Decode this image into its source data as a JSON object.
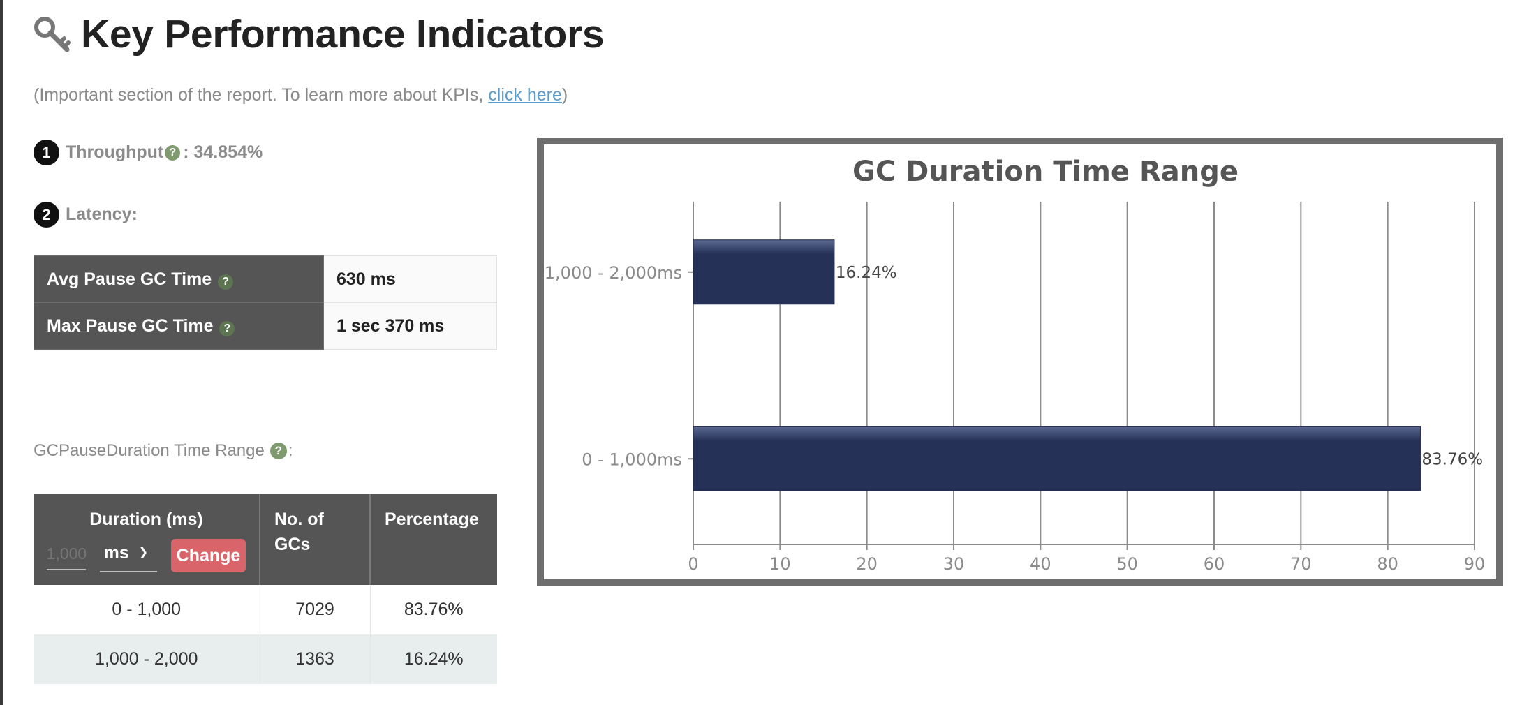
{
  "header": {
    "title": "Key Performance Indicators",
    "subtitle_prefix": "(Important section of the report. To learn more about KPIs, ",
    "subtitle_link": "click here",
    "subtitle_suffix": ")"
  },
  "kpi": {
    "throughput": {
      "badge": "1",
      "label": "Throughput",
      "help": "?",
      "value": " : 34.854%"
    },
    "latency": {
      "badge": "2",
      "label": "Latency:"
    }
  },
  "latency_table": [
    {
      "label": "Avg Pause GC Time",
      "help": "?",
      "value": "630 ms"
    },
    {
      "label": "Max Pause GC Time",
      "help": "?",
      "value": "1 sec 370 ms"
    }
  ],
  "gc_section": {
    "label": "GCPauseDuration Time Range",
    "help": "?",
    "suffix": ":"
  },
  "duration_table": {
    "headers": {
      "duration": "Duration (ms)",
      "count_line1": "No. of",
      "count_line2": "GCs",
      "percentage": "Percentage"
    },
    "range_input_placeholder": "1,000",
    "unit_value": "ms",
    "change_label": "Change",
    "rows": [
      {
        "range": "0 - 1,000",
        "count": "7029",
        "percentage": "83.76%"
      },
      {
        "range": "1,000 - 2,000",
        "count": "1363",
        "percentage": "16.24%"
      }
    ]
  },
  "colors": {
    "bar": "#263157",
    "bar_highlight": "#5a6890",
    "header_bg": "#555555",
    "accent_green": "#7e9a6e",
    "change_button": "#d9646a"
  },
  "chart_data": {
    "type": "bar",
    "orientation": "horizontal",
    "title": "GC Duration Time Range",
    "categories": [
      "1,000 - 2,000ms",
      "0 - 1,000ms"
    ],
    "values": [
      16.24,
      83.76
    ],
    "data_labels": [
      "16.24%",
      "83.76%"
    ],
    "xlim": [
      0,
      90
    ],
    "xticks": [
      0,
      10,
      20,
      30,
      40,
      50,
      60,
      70,
      80,
      90
    ],
    "grid": true
  }
}
